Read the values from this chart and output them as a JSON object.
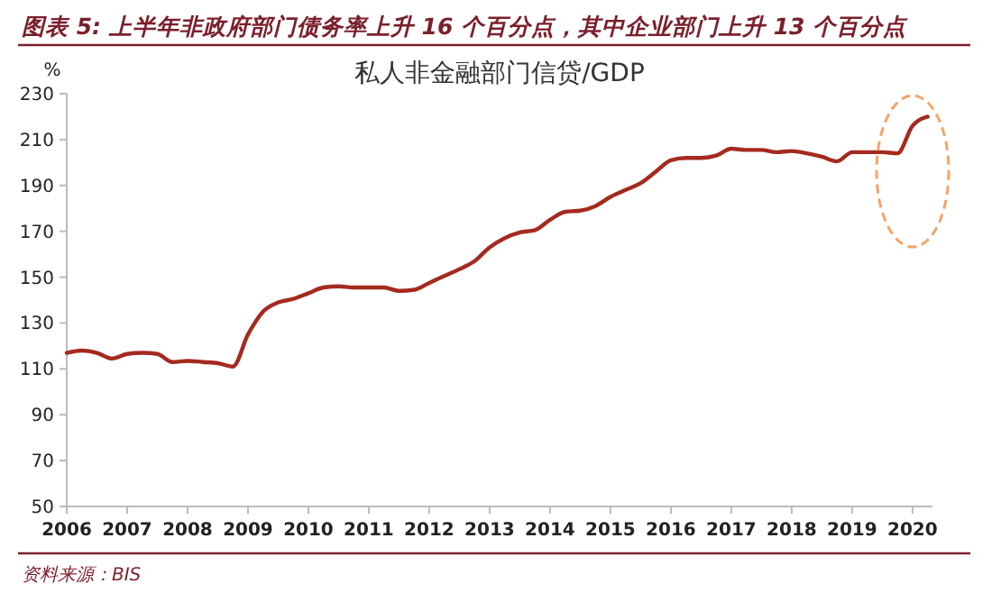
{
  "chart_data": {
    "type": "line",
    "title": "图表 5: 上半年非政府部门债务率上升 16 个百分点，其中企业部门上升 13 个百分点",
    "subtitle": "私人非金融部门信贷/GDP",
    "ylabel": "%",
    "annotations": [
      "资料来源：BIS"
    ],
    "x": [
      2006,
      2006.25,
      2006.5,
      2006.75,
      2007,
      2007.25,
      2007.5,
      2007.75,
      2008,
      2008.25,
      2008.5,
      2008.75,
      2009,
      2009.25,
      2009.5,
      2009.75,
      2010,
      2010.25,
      2010.5,
      2010.75,
      2011,
      2011.25,
      2011.5,
      2011.75,
      2012,
      2012.25,
      2012.5,
      2012.75,
      2013,
      2013.25,
      2013.5,
      2013.75,
      2014,
      2014.25,
      2014.5,
      2014.75,
      2015,
      2015.25,
      2015.5,
      2015.75,
      2016,
      2016.25,
      2016.5,
      2016.75,
      2017,
      2017.25,
      2017.5,
      2017.75,
      2018,
      2018.25,
      2018.5,
      2018.75,
      2019,
      2019.25,
      2019.5,
      2019.75,
      2020,
      2020.25
    ],
    "series": [
      {
        "color": "#a52a1e",
        "values": [
          117,
          118,
          117,
          114.5,
          116.5,
          117,
          116.5,
          113,
          113.5,
          113,
          112.5,
          111,
          125,
          135,
          139,
          140.5,
          143,
          145.5,
          146,
          145.5,
          145.5,
          145.5,
          144,
          144.5,
          147.5,
          150.5,
          153.5,
          157,
          163,
          167,
          169.5,
          170.5,
          175,
          178.5,
          179,
          181,
          185,
          188,
          191,
          196,
          201,
          202,
          202,
          203,
          206,
          205.5,
          205.5,
          204.5,
          205,
          204,
          202.5,
          200.5,
          204.5,
          204.5,
          204.5,
          204,
          216,
          220
        ]
      }
    ],
    "xlim": [
      2006,
      2020.33
    ],
    "xticks": [
      2006,
      2007,
      2008,
      2009,
      2010,
      2011,
      2012,
      2013,
      2014,
      2015,
      2016,
      2017,
      2018,
      2019,
      2020
    ],
    "ylim": [
      50,
      230
    ],
    "yticks": [
      50,
      70,
      90,
      110,
      130,
      150,
      170,
      190,
      210,
      230
    ],
    "grid": false,
    "marker": "none",
    "line_style": "solid"
  }
}
